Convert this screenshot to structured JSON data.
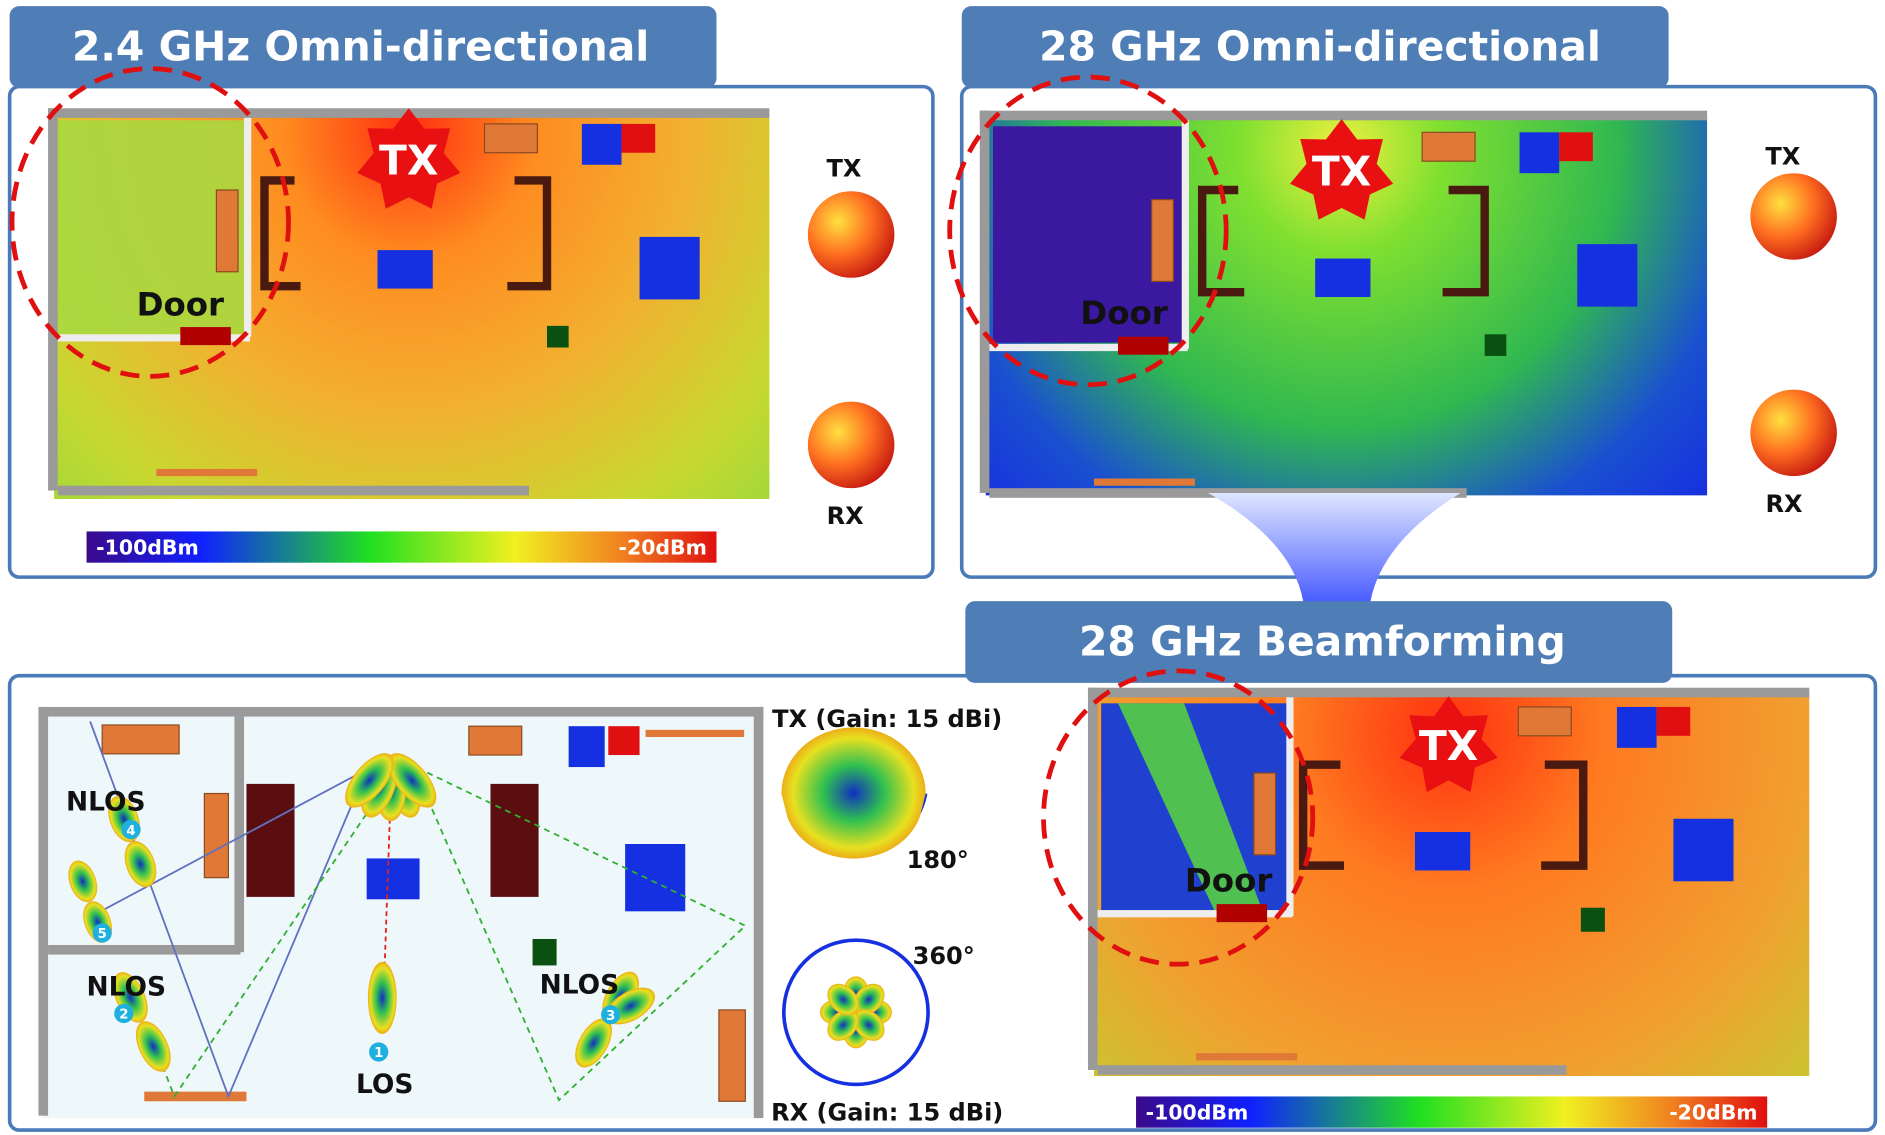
{
  "panels": [
    {
      "title": "2.4 GHz Omni-directional",
      "tx": "TX",
      "door": "Door",
      "antenna_tx": "TX",
      "antenna_rx": "RX",
      "colorbar_min": "-100dBm",
      "colorbar_max": "-20dBm"
    },
    {
      "title": "28 GHz Omni-directional",
      "tx": "TX",
      "door": "Door",
      "antenna_tx": "TX",
      "antenna_rx": "RX"
    },
    {
      "title": "28 GHz Beamforming",
      "tx": "TX",
      "door": "Door",
      "colorbar_min": "-100dBm",
      "colorbar_max": "-20dBm"
    }
  ],
  "scenario": {
    "nlos_room": "NLOS",
    "nlos_left": "NLOS",
    "nlos_right": "NLOS",
    "los": "LOS",
    "rx_numbers": [
      1,
      2,
      3,
      4,
      5
    ],
    "tx_gain": "TX (Gain: 15 dBi)",
    "rx_gain": "RX (Gain: 15 dBi)",
    "tx_angle": "180°",
    "rx_angle": "360°"
  }
}
